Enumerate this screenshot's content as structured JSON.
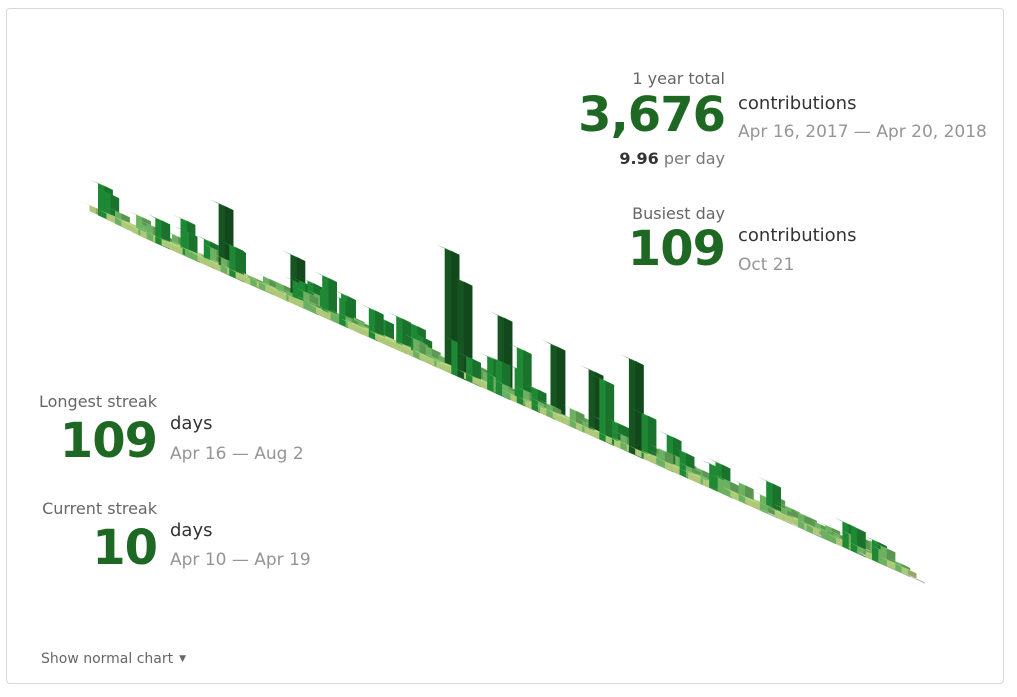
{
  "colors": {
    "accent": "#1e6823",
    "level_0": "#e4e6e6",
    "level_1": "#c6e48b",
    "level_2": "#7bc96f",
    "level_3": "#239a3b",
    "level_4": "#196127"
  },
  "year_total": {
    "label": "1 year total",
    "value": "3,676",
    "unit": "contributions",
    "range": "Apr 16, 2017 — Apr 20, 2018",
    "per_day_value": "9.96",
    "per_day_label": "per day"
  },
  "busiest_day": {
    "label": "Busiest day",
    "value": "109",
    "unit": "contributions",
    "date": "Oct 21"
  },
  "longest_streak": {
    "label": "Longest streak",
    "value": "109",
    "unit": "days",
    "range": "Apr 16 — Aug 2"
  },
  "current_streak": {
    "label": "Current streak",
    "value": "10",
    "unit": "days",
    "range": "Apr 10 — Apr 19"
  },
  "toggle": {
    "label": "Show normal chart",
    "icon": "caret-down-icon"
  },
  "chart_data": {
    "type": "isometric-contribution-calendar",
    "weeks": 53,
    "days_per_week": 7,
    "start": "Apr 16, 2017",
    "end": "Apr 20, 2018",
    "max_day_contributions": 109,
    "tall_columns": [
      {
        "week": 7,
        "day": 3,
        "level": 4,
        "count": 60
      },
      {
        "week": 13,
        "day": 1,
        "level": 4,
        "count": 42
      },
      {
        "week": 14,
        "day": 3,
        "level": 3,
        "count": 36
      },
      {
        "week": 24,
        "day": 0,
        "level": 4,
        "count": 109
      },
      {
        "week": 22,
        "day": 5,
        "level": 4,
        "count": 88
      },
      {
        "week": 27,
        "day": 1,
        "level": 4,
        "count": 70
      },
      {
        "week": 30,
        "day": 2,
        "level": 4,
        "count": 65
      },
      {
        "week": 32,
        "day": 3,
        "level": 4,
        "count": 58
      },
      {
        "week": 33,
        "day": 6,
        "level": 4,
        "count": 85
      },
      {
        "week": 35,
        "day": 4,
        "level": 3,
        "count": 40
      },
      {
        "week": 26,
        "day": 5,
        "level": 3,
        "count": 50
      },
      {
        "week": 31,
        "day": 6,
        "level": 3,
        "count": 55
      }
    ]
  }
}
